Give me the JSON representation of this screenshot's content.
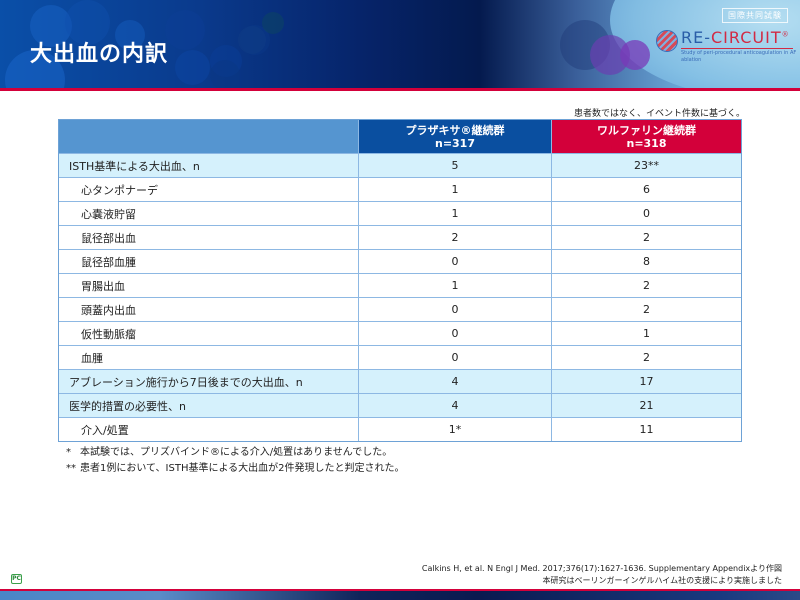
{
  "header": {
    "title": "大出血の内訳",
    "badge": "国際共同試験",
    "logo": {
      "name_part1": "RE-",
      "name_part2": "CIRCUIT",
      "registered": "®",
      "subtitle": "Study of peri-procedural anticoagulation in AF ablation"
    }
  },
  "table": {
    "note": "患者数ではなく、イベント件数に基づく。",
    "columns": [
      {
        "label": "",
        "sub": ""
      },
      {
        "label": "プラザキサ®継続群",
        "sub": "n=317",
        "color": "#0a4fa0"
      },
      {
        "label": "ワルファリン継続群",
        "sub": "n=318",
        "color": "#d3003a"
      }
    ],
    "rows": [
      {
        "label": "ISTH基準による大出血、n",
        "dabigatran": "5",
        "warfarin": "23**",
        "highlight": true,
        "indent": false
      },
      {
        "label": "心タンポナーデ",
        "dabigatran": "1",
        "warfarin": "6",
        "highlight": false,
        "indent": true
      },
      {
        "label": "心嚢液貯留",
        "dabigatran": "1",
        "warfarin": "0",
        "highlight": false,
        "indent": true
      },
      {
        "label": "鼠径部出血",
        "dabigatran": "2",
        "warfarin": "2",
        "highlight": false,
        "indent": true
      },
      {
        "label": "鼠径部血腫",
        "dabigatran": "0",
        "warfarin": "8",
        "highlight": false,
        "indent": true
      },
      {
        "label": "胃腸出血",
        "dabigatran": "1",
        "warfarin": "2",
        "highlight": false,
        "indent": true
      },
      {
        "label": "頭蓋内出血",
        "dabigatran": "0",
        "warfarin": "2",
        "highlight": false,
        "indent": true
      },
      {
        "label": "仮性動脈瘤",
        "dabigatran": "0",
        "warfarin": "1",
        "highlight": false,
        "indent": true
      },
      {
        "label": "血腫",
        "dabigatran": "0",
        "warfarin": "2",
        "highlight": false,
        "indent": true
      },
      {
        "label": "アブレーション施行から7日後までの大出血、n",
        "dabigatran": "4",
        "warfarin": "17",
        "highlight": true,
        "indent": false
      },
      {
        "label": "医学的措置の必要性、n",
        "dabigatran": "4",
        "warfarin": "21",
        "highlight": true,
        "indent": false
      },
      {
        "label": "介入/処置",
        "dabigatran": "1*",
        "warfarin": "11",
        "highlight": false,
        "indent": true
      }
    ]
  },
  "footnotes": [
    {
      "mark": "*",
      "text": "本試験では、プリズバインド®による介入/処置はありませんでした。"
    },
    {
      "mark": "**",
      "text": "患者1例において、ISTH基準による大出血が2件発現したと判定された。"
    }
  ],
  "citation": {
    "line1": "Calkins H, et al. N Engl J Med. 2017;376(17):1627-1636. Supplementary Appendixより作図",
    "line2": "本研究はベーリンガーインゲルハイム社の支援により実施しました"
  },
  "corner_icon": {
    "label": "PC"
  },
  "colors": {
    "accent_red": "#d3003a",
    "header_blue": "#0a4fa0",
    "row_highlight": "#d5f1fc",
    "table_border": "#6ea2d6"
  }
}
